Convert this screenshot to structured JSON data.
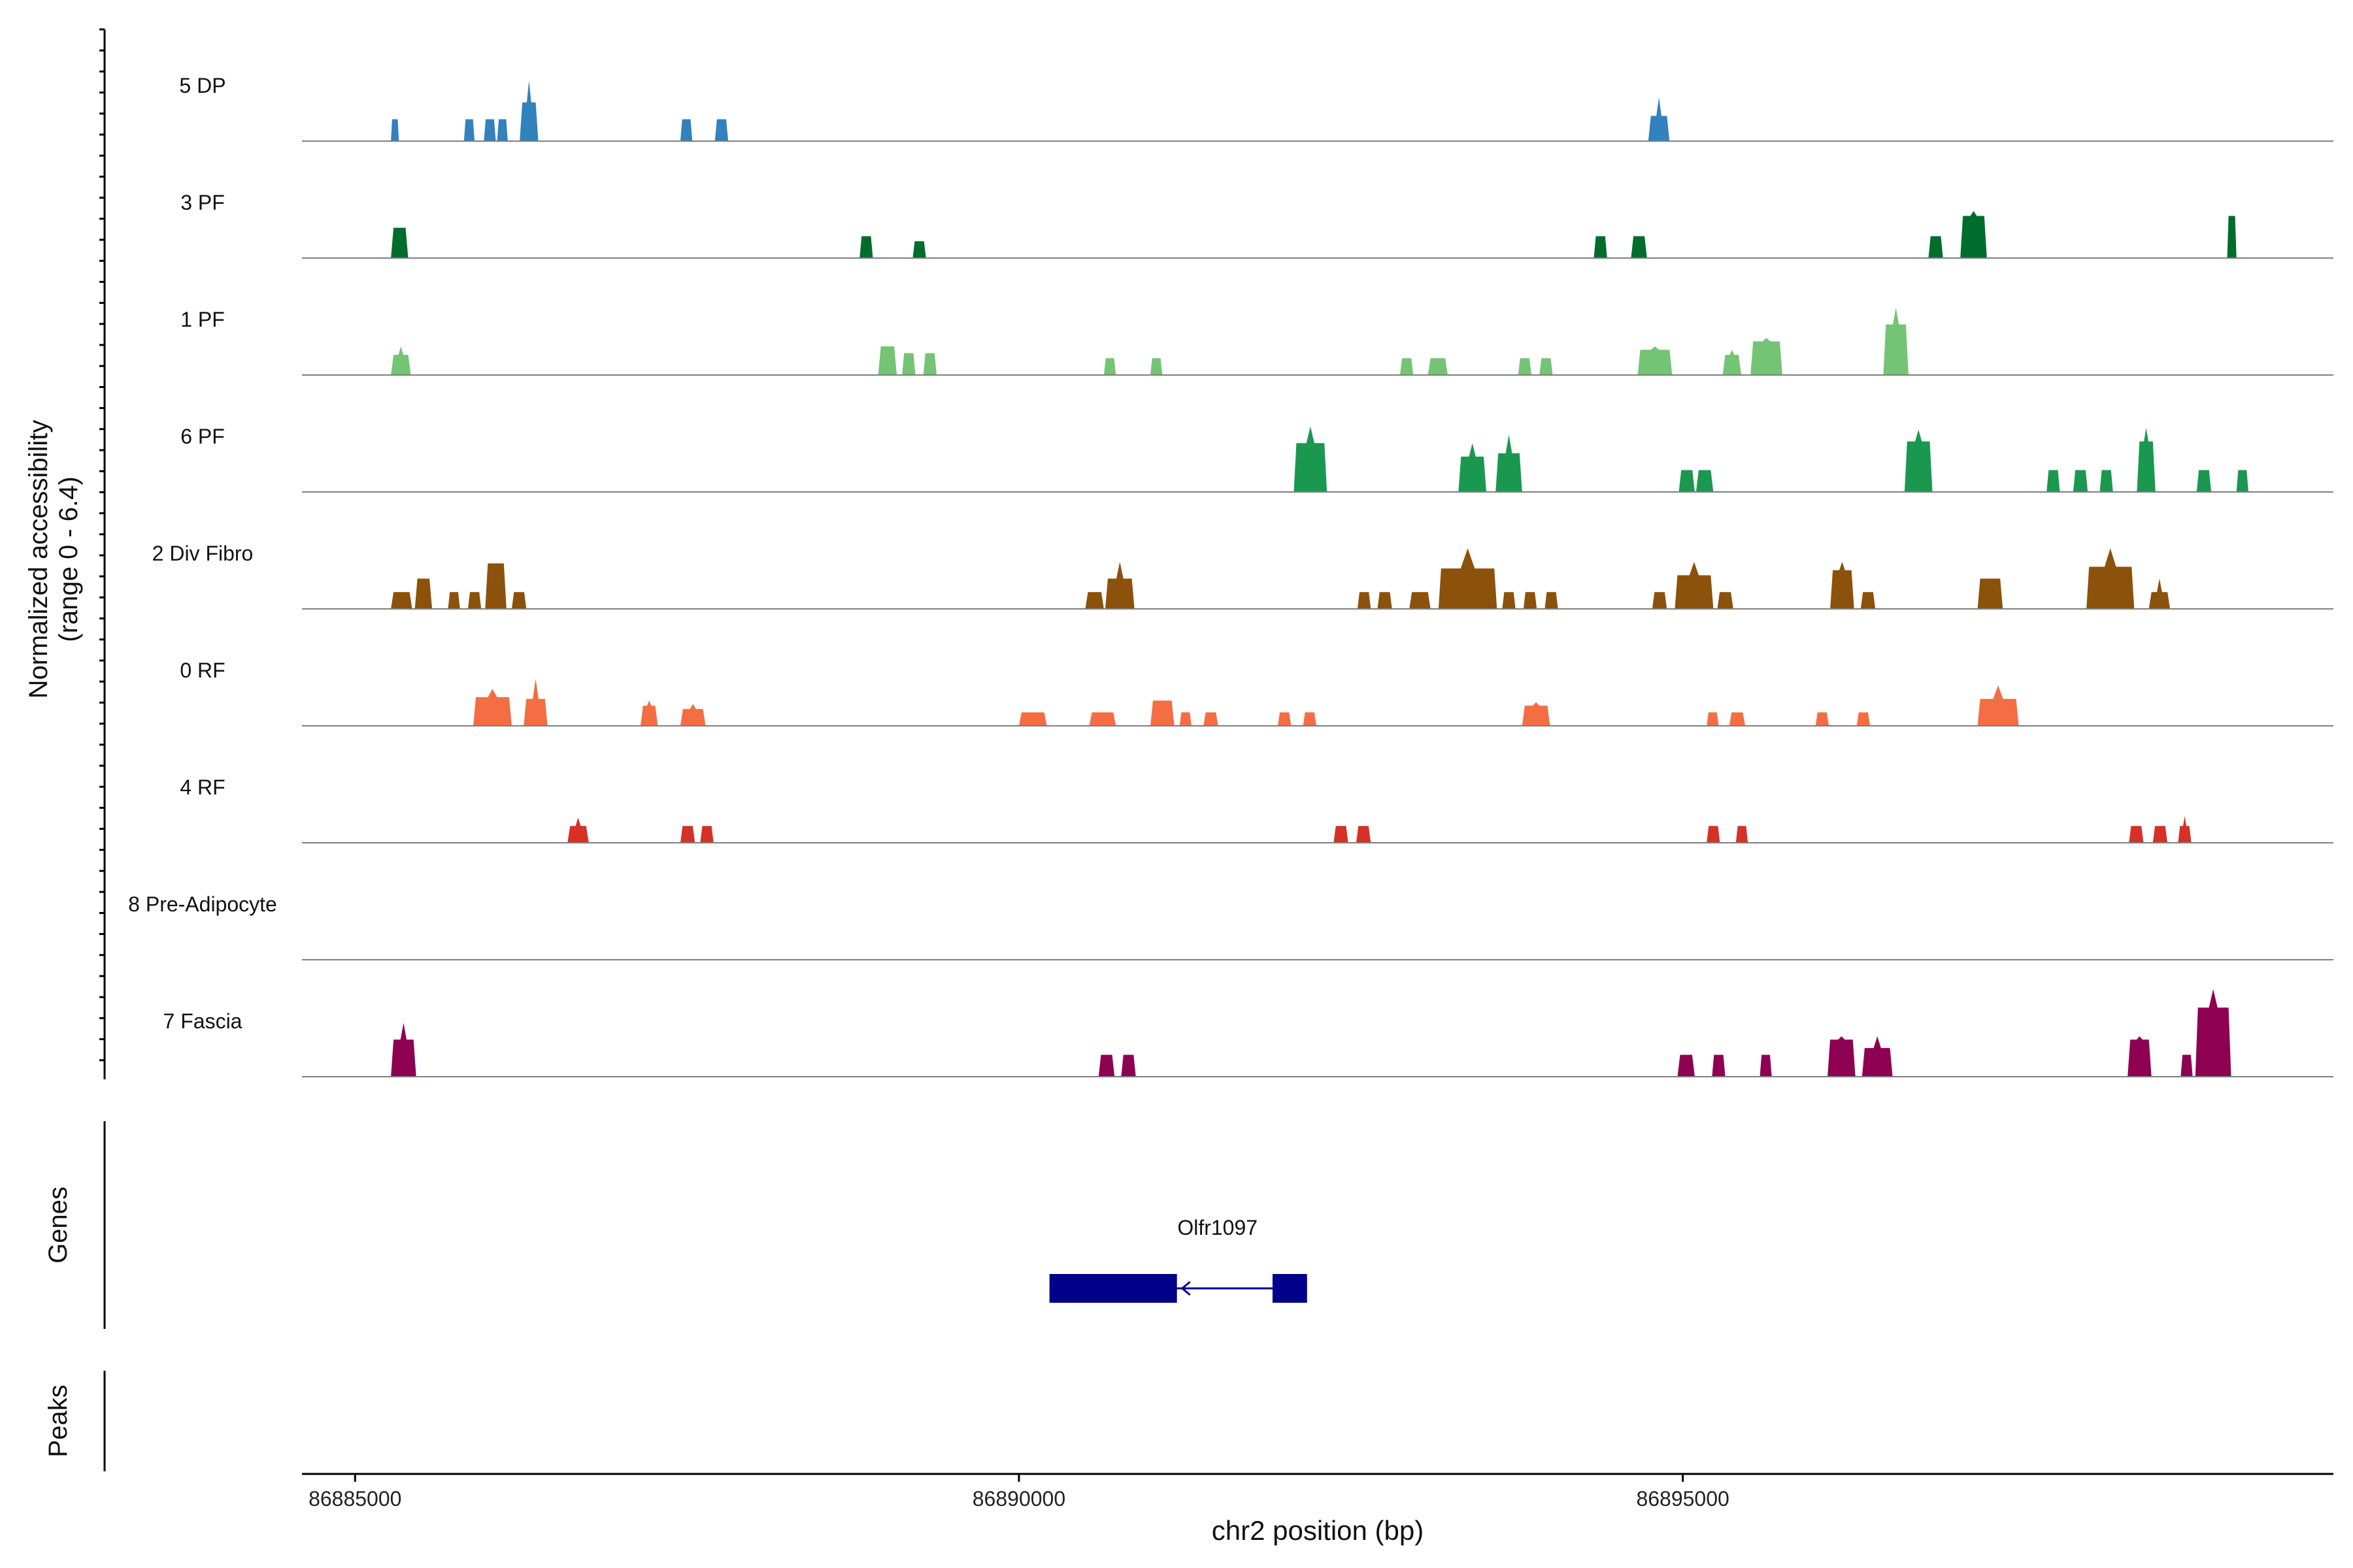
{
  "chart_data": {
    "type": "area",
    "title": "",
    "xlabel": "chr2 position (bp)",
    "ylabel_line1": "Normalized accessibility",
    "ylabel_line2": "(range 0 - 6.4)",
    "xlim": [
      86884600,
      86899900
    ],
    "ylim": [
      0,
      6.4
    ],
    "xticks": [
      86885000,
      86890000,
      86895000
    ],
    "xtick_labels": [
      "86885000",
      "86890000",
      "86895000"
    ],
    "panel_labels": {
      "genes": "Genes",
      "peaks": "Peaks"
    },
    "genes": [
      {
        "name": "Olfr1097",
        "strand": "-",
        "start": 86890230,
        "end": 86892170,
        "exons": [
          [
            86890230,
            86891190
          ],
          [
            86891910,
            86892170
          ]
        ],
        "color": "#00008B"
      }
    ],
    "tracks": [
      {
        "name": "5 DP",
        "color": "#3182BD",
        "peaks": [
          [
            86885270,
            86885330,
            1.3,
            1.3
          ],
          [
            86885820,
            86885900,
            1.3,
            1.3
          ],
          [
            86885970,
            86886060,
            1.3,
            1.3
          ],
          [
            86886070,
            86886150,
            1.3,
            1.3
          ],
          [
            86886240,
            86886380,
            2.3,
            3.6
          ],
          [
            86887450,
            86887540,
            1.3,
            1.3
          ],
          [
            86887710,
            86887810,
            1.3,
            1.3
          ],
          [
            86894740,
            86894900,
            1.5,
            2.6
          ]
        ]
      },
      {
        "name": "3 PF",
        "color": "#006D2C",
        "peaks": [
          [
            86885270,
            86885400,
            1.8,
            1.8
          ],
          [
            86888800,
            86888900,
            1.3,
            1.3
          ],
          [
            86889200,
            86889300,
            1.0,
            1.0
          ],
          [
            86894330,
            86894430,
            1.3,
            1.3
          ],
          [
            86894610,
            86894730,
            1.3,
            1.3
          ],
          [
            86896850,
            86896960,
            1.3,
            1.3
          ],
          [
            86897090,
            86897290,
            2.5,
            2.8
          ],
          [
            86899100,
            86899170,
            2.5,
            2.5
          ]
        ]
      },
      {
        "name": "1 PF",
        "color": "#74C476",
        "peaks": [
          [
            86885270,
            86885420,
            1.2,
            1.7
          ],
          [
            86888940,
            86889080,
            1.7,
            1.7
          ],
          [
            86889120,
            86889220,
            1.3,
            1.3
          ],
          [
            86889280,
            86889380,
            1.3,
            1.3
          ],
          [
            86890640,
            86890730,
            1.0,
            1.0
          ],
          [
            86890990,
            86891080,
            1.0,
            1.0
          ],
          [
            86892870,
            86892970,
            1.0,
            1.0
          ],
          [
            86893080,
            86893230,
            1.0,
            1.0
          ],
          [
            86893760,
            86893860,
            1.0,
            1.0
          ],
          [
            86893920,
            86894020,
            1.0,
            1.0
          ],
          [
            86894660,
            86894920,
            1.5,
            1.7
          ],
          [
            86895300,
            86895440,
            1.2,
            1.5
          ],
          [
            86895510,
            86895750,
            2.0,
            2.2
          ],
          [
            86896510,
            86896700,
            3.0,
            4.0
          ]
        ]
      },
      {
        "name": "6 PF",
        "color": "#1A9850",
        "peaks": [
          [
            86892070,
            86892320,
            2.9,
            3.9
          ],
          [
            86893310,
            86893520,
            2.1,
            2.9
          ],
          [
            86893590,
            86893790,
            2.3,
            3.4
          ],
          [
            86894970,
            86895090,
            1.3,
            1.3
          ],
          [
            86895100,
            86895230,
            1.3,
            1.3
          ],
          [
            86896670,
            86896880,
            3.0,
            3.7
          ],
          [
            86897740,
            86897840,
            1.3,
            1.3
          ],
          [
            86897940,
            86898050,
            1.3,
            1.3
          ],
          [
            86898140,
            86898240,
            1.3,
            1.3
          ],
          [
            86898420,
            86898560,
            3.0,
            3.8
          ],
          [
            86898870,
            86898980,
            1.3,
            1.3
          ],
          [
            86899170,
            86899260,
            1.3,
            1.3
          ]
        ]
      },
      {
        "name": "2 Div Fibro",
        "color": "#8C510A",
        "peaks": [
          [
            86885270,
            86885430,
            1.0,
            1.0
          ],
          [
            86885450,
            86885580,
            1.8,
            1.8
          ],
          [
            86885700,
            86885790,
            1.0,
            1.0
          ],
          [
            86885850,
            86885950,
            1.0,
            1.0
          ],
          [
            86885980,
            86886140,
            2.7,
            2.7
          ],
          [
            86886180,
            86886290,
            1.0,
            1.0
          ],
          [
            86890500,
            86890640,
            1.0,
            1.0
          ],
          [
            86890650,
            86890870,
            1.8,
            2.8
          ],
          [
            86892550,
            86892650,
            1.0,
            1.0
          ],
          [
            86892700,
            86892810,
            1.0,
            1.0
          ],
          [
            86892940,
            86893100,
            1.0,
            1.0
          ],
          [
            86893160,
            86893600,
            2.4,
            3.6
          ],
          [
            86893640,
            86893740,
            1.0,
            1.0
          ],
          [
            86893800,
            86893900,
            1.0,
            1.0
          ],
          [
            86893960,
            86894060,
            1.0,
            1.0
          ],
          [
            86894770,
            86894880,
            1.0,
            1.0
          ],
          [
            86894940,
            86895230,
            2.0,
            2.8
          ],
          [
            86895260,
            86895380,
            1.0,
            1.0
          ],
          [
            86896110,
            86896290,
            2.3,
            2.8
          ],
          [
            86896340,
            86896450,
            1.0,
            1.0
          ],
          [
            86897220,
            86897410,
            1.8,
            1.8
          ],
          [
            86898040,
            86898400,
            2.5,
            3.6
          ],
          [
            86898510,
            86898670,
            1.0,
            1.8
          ]
        ]
      },
      {
        "name": "0 RF",
        "color": "#F46D43",
        "peaks": [
          [
            86885890,
            86886180,
            1.7,
            2.2
          ],
          [
            86886270,
            86886450,
            1.6,
            2.8
          ],
          [
            86887150,
            86887280,
            1.2,
            1.5
          ],
          [
            86887450,
            86887640,
            1.0,
            1.3
          ],
          [
            86890000,
            86890210,
            0.8,
            0.8
          ],
          [
            86890530,
            86890730,
            0.8,
            0.8
          ],
          [
            86890990,
            86891170,
            1.5,
            1.5
          ],
          [
            86891210,
            86891300,
            0.8,
            0.8
          ],
          [
            86891390,
            86891500,
            0.8,
            0.8
          ],
          [
            86891950,
            86892050,
            0.8,
            0.8
          ],
          [
            86892140,
            86892240,
            0.8,
            0.8
          ],
          [
            86893790,
            86894000,
            1.2,
            1.4
          ],
          [
            86895180,
            86895270,
            0.8,
            0.8
          ],
          [
            86895350,
            86895470,
            0.8,
            0.8
          ],
          [
            86896000,
            86896100,
            0.8,
            0.8
          ],
          [
            86896310,
            86896410,
            0.8,
            0.8
          ],
          [
            86897220,
            86897530,
            1.6,
            2.4
          ]
        ]
      },
      {
        "name": "4 RF",
        "color": "#D73027",
        "peaks": [
          [
            86886600,
            86886760,
            1.0,
            1.5
          ],
          [
            86887450,
            86887560,
            1.0,
            1.0
          ],
          [
            86887600,
            86887700,
            1.0,
            1.0
          ],
          [
            86892370,
            86892480,
            1.0,
            1.0
          ],
          [
            86892540,
            86892650,
            1.0,
            1.0
          ],
          [
            86895180,
            86895280,
            1.0,
            1.0
          ],
          [
            86895400,
            86895490,
            1.0,
            1.0
          ],
          [
            86898360,
            86898470,
            1.0,
            1.0
          ],
          [
            86898540,
            86898650,
            1.0,
            1.0
          ],
          [
            86898730,
            86898830,
            1.0,
            1.6
          ]
        ]
      },
      {
        "name": "8 Pre-Adipocyte",
        "color": "#984EA3",
        "peaks": []
      },
      {
        "name": "7 Fascia",
        "color": "#8E0152",
        "peaks": [
          [
            86885270,
            86885460,
            2.2,
            3.2
          ],
          [
            86890600,
            86890720,
            1.3,
            1.3
          ],
          [
            86890770,
            86890880,
            1.3,
            1.3
          ],
          [
            86894960,
            86895090,
            1.3,
            1.3
          ],
          [
            86895220,
            86895320,
            1.3,
            1.3
          ],
          [
            86895580,
            86895670,
            1.3,
            1.3
          ],
          [
            86896090,
            86896300,
            2.2,
            2.4
          ],
          [
            86896350,
            86896580,
            1.7,
            2.4
          ],
          [
            86898350,
            86898530,
            2.2,
            2.4
          ],
          [
            86898750,
            86898840,
            1.3,
            1.3
          ],
          [
            86898860,
            86899130,
            4.1,
            5.2
          ]
        ]
      }
    ]
  }
}
